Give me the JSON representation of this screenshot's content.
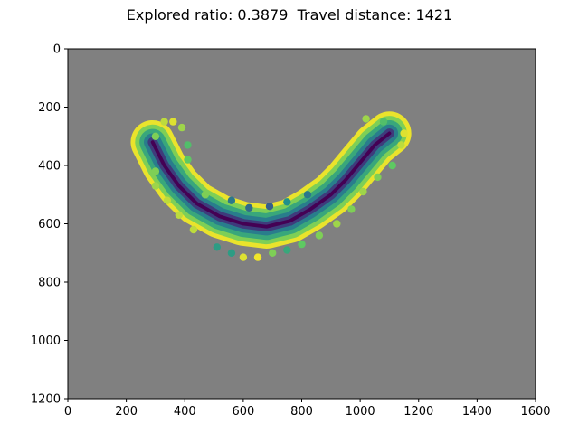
{
  "chart_data": {
    "type": "scatter",
    "title": "Explored ratio: 0.3879  Travel distance: 1421",
    "xlabel": "",
    "ylabel": "",
    "xlim": [
      0,
      1600
    ],
    "ylim": [
      1200,
      0
    ],
    "y_inverted": true,
    "grid": false,
    "background_color": "#808080",
    "colormap": "viridis",
    "x_ticks": [
      "0",
      "200",
      "400",
      "600",
      "800",
      "1000",
      "1200",
      "1400",
      "1600"
    ],
    "y_ticks": [
      "0",
      "200",
      "400",
      "600",
      "800",
      "1000",
      "1200"
    ],
    "band": {
      "description": "U-shaped corridor of explored cells",
      "centerline": [
        [
          290,
          320
        ],
        [
          330,
          400
        ],
        [
          380,
          470
        ],
        [
          440,
          530
        ],
        [
          520,
          575
        ],
        [
          600,
          600
        ],
        [
          680,
          610
        ],
        [
          760,
          590
        ],
        [
          830,
          550
        ],
        [
          900,
          500
        ],
        [
          950,
          450
        ],
        [
          1000,
          390
        ],
        [
          1050,
          330
        ],
        [
          1100,
          290
        ]
      ],
      "half_width": 75
    },
    "points": [
      {
        "x": 330,
        "y": 250,
        "v": 0.9
      },
      {
        "x": 360,
        "y": 250,
        "v": 0.95
      },
      {
        "x": 390,
        "y": 270,
        "v": 0.85
      },
      {
        "x": 300,
        "y": 300,
        "v": 0.8
      },
      {
        "x": 410,
        "y": 330,
        "v": 0.7
      },
      {
        "x": 410,
        "y": 380,
        "v": 0.75
      },
      {
        "x": 300,
        "y": 420,
        "v": 0.8
      },
      {
        "x": 300,
        "y": 470,
        "v": 0.85
      },
      {
        "x": 340,
        "y": 520,
        "v": 0.9
      },
      {
        "x": 380,
        "y": 570,
        "v": 0.9
      },
      {
        "x": 430,
        "y": 620,
        "v": 0.9
      },
      {
        "x": 470,
        "y": 500,
        "v": 0.8
      },
      {
        "x": 510,
        "y": 680,
        "v": 0.55
      },
      {
        "x": 560,
        "y": 700,
        "v": 0.55
      },
      {
        "x": 600,
        "y": 715,
        "v": 0.95
      },
      {
        "x": 650,
        "y": 715,
        "v": 0.98
      },
      {
        "x": 700,
        "y": 700,
        "v": 0.8
      },
      {
        "x": 750,
        "y": 690,
        "v": 0.6
      },
      {
        "x": 800,
        "y": 670,
        "v": 0.75
      },
      {
        "x": 860,
        "y": 640,
        "v": 0.8
      },
      {
        "x": 920,
        "y": 600,
        "v": 0.85
      },
      {
        "x": 970,
        "y": 550,
        "v": 0.8
      },
      {
        "x": 1010,
        "y": 490,
        "v": 0.85
      },
      {
        "x": 1060,
        "y": 440,
        "v": 0.8
      },
      {
        "x": 1110,
        "y": 400,
        "v": 0.75
      },
      {
        "x": 1140,
        "y": 330,
        "v": 0.9
      },
      {
        "x": 1150,
        "y": 290,
        "v": 0.95
      },
      {
        "x": 1080,
        "y": 250,
        "v": 0.7
      },
      {
        "x": 1020,
        "y": 240,
        "v": 0.85
      },
      {
        "x": 560,
        "y": 520,
        "v": 0.4
      },
      {
        "x": 620,
        "y": 545,
        "v": 0.35
      },
      {
        "x": 690,
        "y": 540,
        "v": 0.3
      },
      {
        "x": 750,
        "y": 525,
        "v": 0.5
      },
      {
        "x": 820,
        "y": 500,
        "v": 0.4
      }
    ]
  }
}
